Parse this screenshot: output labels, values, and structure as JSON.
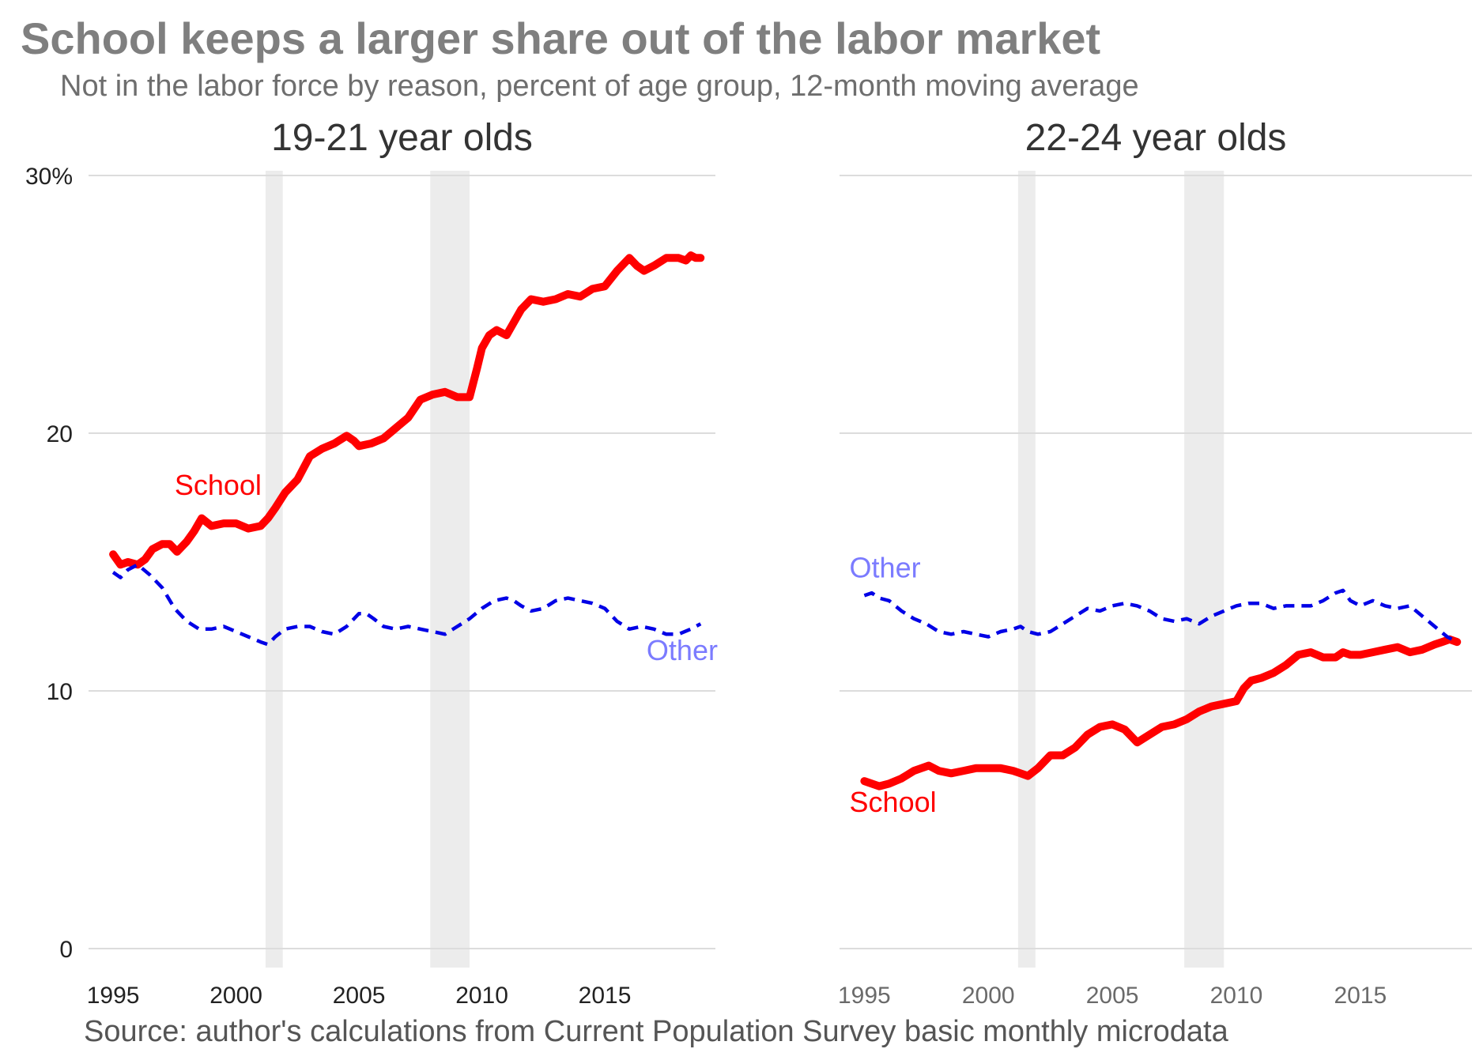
{
  "title": "School keeps a larger share out of the labor market",
  "subtitle": "Not in the labor force by reason, percent of age group, 12-month moving average",
  "source": "Source: author's calculations from Current Population Survey basic monthly microdata",
  "colors": {
    "school": "#ff0000",
    "other": "#0000e6",
    "other_label": "#7b7bff",
    "recession": "#ececec",
    "grid": "#dcdcdc"
  },
  "chart_data": [
    {
      "type": "line",
      "title": "19-21 year olds",
      "xlim": [
        1994.0,
        2019.5
      ],
      "ylim": [
        0,
        30
      ],
      "yticks": [
        "0",
        "10",
        "20",
        "30%"
      ],
      "xticks": [
        "1995",
        "2000",
        "2005",
        "2010",
        "2015"
      ],
      "recessions": [
        [
          2001.2,
          2001.9
        ],
        [
          2007.9,
          2009.5
        ]
      ],
      "grid": true,
      "series": [
        {
          "name": "School",
          "label_position": [
            1997.5,
            17.6
          ],
          "x": [
            1995.0,
            1995.3,
            1995.6,
            1996.0,
            1996.3,
            1996.6,
            1997.0,
            1997.3,
            1997.6,
            1998.0,
            1998.3,
            1998.6,
            1999.0,
            1999.5,
            2000.0,
            2000.5,
            2001.0,
            2001.3,
            2001.6,
            2002.0,
            2002.5,
            2003.0,
            2003.5,
            2004.0,
            2004.5,
            2004.8,
            2005.0,
            2005.5,
            2006.0,
            2006.5,
            2007.0,
            2007.5,
            2008.0,
            2008.5,
            2009.0,
            2009.5,
            2009.8,
            2010.0,
            2010.3,
            2010.6,
            2011.0,
            2011.3,
            2011.6,
            2012.0,
            2012.5,
            2013.0,
            2013.5,
            2014.0,
            2014.5,
            2015.0,
            2015.5,
            2016.0,
            2016.3,
            2016.6,
            2017.0,
            2017.5,
            2018.0,
            2018.3,
            2018.5,
            2018.7,
            2018.9
          ],
          "values": [
            15.3,
            14.9,
            15.0,
            14.9,
            15.1,
            15.5,
            15.7,
            15.7,
            15.4,
            15.8,
            16.2,
            16.7,
            16.4,
            16.5,
            16.5,
            16.3,
            16.4,
            16.7,
            17.1,
            17.7,
            18.2,
            19.1,
            19.4,
            19.6,
            19.9,
            19.7,
            19.5,
            19.6,
            19.8,
            20.2,
            20.6,
            21.3,
            21.5,
            21.6,
            21.4,
            21.4,
            22.5,
            23.3,
            23.8,
            24.0,
            23.8,
            24.3,
            24.8,
            25.2,
            25.1,
            25.2,
            25.4,
            25.3,
            25.6,
            25.7,
            26.3,
            26.8,
            26.5,
            26.3,
            26.5,
            26.8,
            26.8,
            26.7,
            26.9,
            26.8,
            26.8
          ]
        },
        {
          "name": "Other",
          "label_position": [
            2016.7,
            11.2
          ],
          "x": [
            1995.0,
            1995.3,
            1995.6,
            1996.0,
            1996.5,
            1997.0,
            1997.5,
            1998.0,
            1998.5,
            1999.0,
            1999.5,
            2000.0,
            2000.5,
            2001.0,
            2001.3,
            2001.6,
            2002.0,
            2002.5,
            2003.0,
            2003.5,
            2004.0,
            2004.5,
            2005.0,
            2005.3,
            2005.6,
            2006.0,
            2006.5,
            2007.0,
            2007.5,
            2008.0,
            2008.5,
            2009.0,
            2009.5,
            2010.0,
            2010.5,
            2011.0,
            2011.3,
            2011.6,
            2012.0,
            2012.5,
            2013.0,
            2013.5,
            2014.0,
            2014.5,
            2015.0,
            2015.5,
            2016.0,
            2016.5,
            2017.0,
            2017.5,
            2018.0,
            2018.5,
            2018.9
          ],
          "values": [
            14.6,
            14.4,
            14.7,
            14.9,
            14.5,
            14.0,
            13.2,
            12.7,
            12.4,
            12.4,
            12.5,
            12.3,
            12.1,
            11.9,
            11.8,
            12.1,
            12.4,
            12.5,
            12.5,
            12.3,
            12.2,
            12.5,
            13.0,
            13.0,
            12.8,
            12.5,
            12.4,
            12.5,
            12.4,
            12.3,
            12.2,
            12.5,
            12.8,
            13.2,
            13.5,
            13.6,
            13.5,
            13.3,
            13.1,
            13.2,
            13.5,
            13.6,
            13.5,
            13.4,
            13.2,
            12.7,
            12.4,
            12.5,
            12.4,
            12.2,
            12.2,
            12.4,
            12.6
          ]
        }
      ]
    },
    {
      "type": "line",
      "title": "22-24 year olds",
      "xlim": [
        1994.0,
        2019.5
      ],
      "ylim": [
        0,
        30
      ],
      "xticks": [
        "1995",
        "2000",
        "2005",
        "2010",
        "2015"
      ],
      "recessions": [
        [
          2001.2,
          2001.9
        ],
        [
          2007.9,
          2009.5
        ]
      ],
      "grid": true,
      "series": [
        {
          "name": "School",
          "label_position": [
            1994.4,
            5.3
          ],
          "x": [
            1995.0,
            1995.3,
            1995.6,
            1996.0,
            1996.5,
            1997.0,
            1997.3,
            1997.6,
            1998.0,
            1998.5,
            1999.0,
            1999.5,
            2000.0,
            2000.5,
            2001.0,
            2001.3,
            2001.6,
            2002.0,
            2002.5,
            2003.0,
            2003.5,
            2004.0,
            2004.5,
            2005.0,
            2005.5,
            2006.0,
            2006.5,
            2007.0,
            2007.5,
            2008.0,
            2008.5,
            2009.0,
            2009.5,
            2010.0,
            2010.3,
            2010.6,
            2011.0,
            2011.5,
            2012.0,
            2012.5,
            2013.0,
            2013.5,
            2014.0,
            2014.3,
            2014.6,
            2015.0,
            2015.5,
            2016.0,
            2016.5,
            2017.0,
            2017.5,
            2018.0,
            2018.3,
            2018.6,
            2018.9
          ],
          "values": [
            6.5,
            6.4,
            6.3,
            6.4,
            6.6,
            6.9,
            7.0,
            7.1,
            6.9,
            6.8,
            6.9,
            7.0,
            7.0,
            7.0,
            6.9,
            6.8,
            6.7,
            7.0,
            7.5,
            7.5,
            7.8,
            8.3,
            8.6,
            8.7,
            8.5,
            8.0,
            8.3,
            8.6,
            8.7,
            8.9,
            9.2,
            9.4,
            9.5,
            9.6,
            10.1,
            10.4,
            10.5,
            10.7,
            11.0,
            11.4,
            11.5,
            11.3,
            11.3,
            11.5,
            11.4,
            11.4,
            11.5,
            11.6,
            11.7,
            11.5,
            11.6,
            11.8,
            11.9,
            12.0,
            11.9
          ],
          "flip": false
        },
        {
          "name": "Other",
          "label_position": [
            1994.4,
            14.4
          ],
          "x": [
            1995.0,
            1995.3,
            1995.6,
            1996.0,
            1996.5,
            1997.0,
            1997.5,
            1998.0,
            1998.5,
            1999.0,
            1999.5,
            2000.0,
            2000.5,
            2001.0,
            2001.3,
            2001.6,
            2002.0,
            2002.5,
            2003.0,
            2003.5,
            2004.0,
            2004.5,
            2005.0,
            2005.5,
            2006.0,
            2006.5,
            2007.0,
            2007.5,
            2008.0,
            2008.5,
            2009.0,
            2009.5,
            2010.0,
            2010.5,
            2011.0,
            2011.5,
            2012.0,
            2012.5,
            2013.0,
            2013.5,
            2014.0,
            2014.3,
            2014.6,
            2015.0,
            2015.5,
            2016.0,
            2016.5,
            2017.0,
            2017.5,
            2018.0,
            2018.5,
            2018.9
          ],
          "values": [
            13.7,
            13.8,
            13.6,
            13.5,
            13.1,
            12.8,
            12.6,
            12.3,
            12.2,
            12.3,
            12.2,
            12.1,
            12.3,
            12.4,
            12.5,
            12.3,
            12.2,
            12.3,
            12.6,
            12.9,
            13.2,
            13.1,
            13.3,
            13.4,
            13.3,
            13.1,
            12.8,
            12.7,
            12.8,
            12.6,
            12.9,
            13.1,
            13.3,
            13.4,
            13.4,
            13.2,
            13.3,
            13.3,
            13.3,
            13.5,
            13.8,
            13.9,
            13.5,
            13.3,
            13.5,
            13.3,
            13.2,
            13.3,
            12.9,
            12.5,
            12.1,
            11.9
          ]
        }
      ]
    }
  ]
}
